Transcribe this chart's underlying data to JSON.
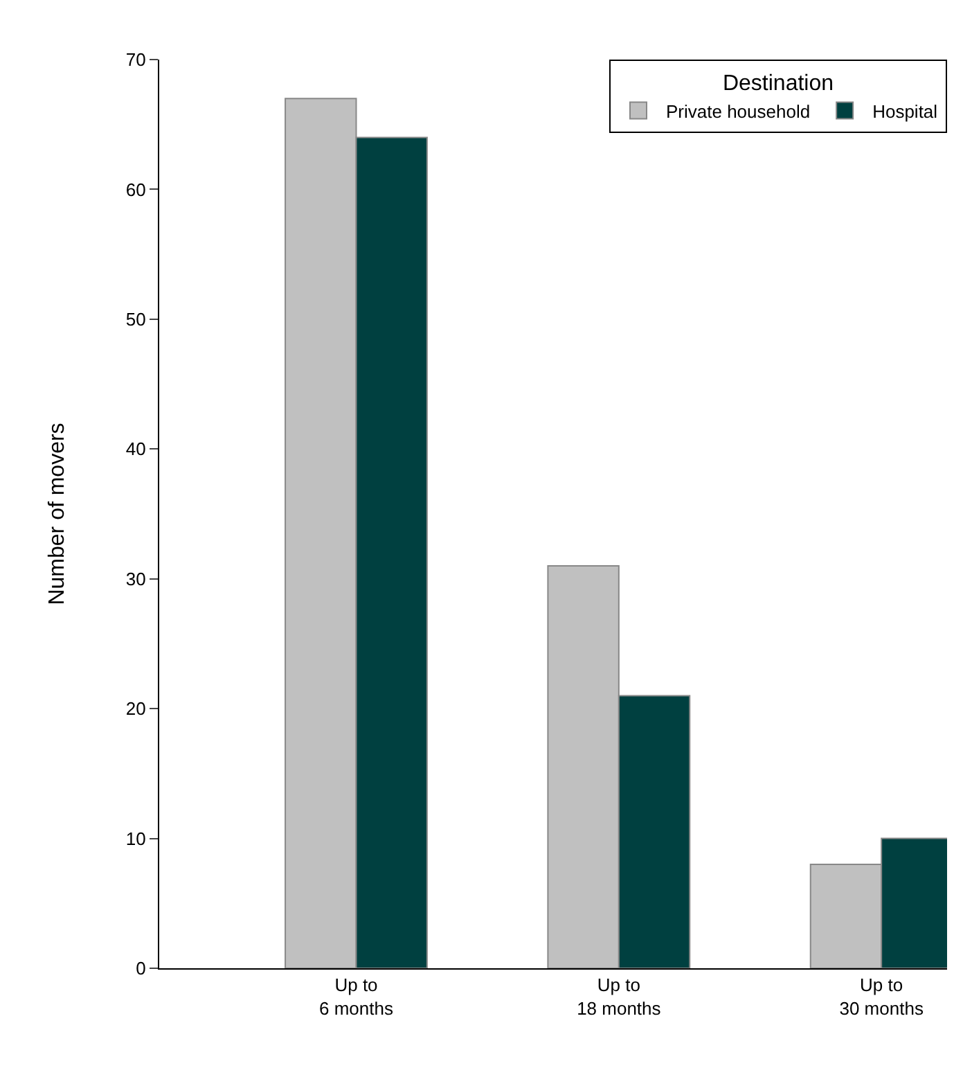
{
  "chart_data": {
    "type": "bar",
    "ylabel": "Number of movers",
    "legend_title": "Destination",
    "legend": "top right",
    "categories": [
      "Up to\n6 months",
      "Up to\n18 months",
      "Up to\n30 months"
    ],
    "series": [
      {
        "name": "Private household",
        "color": "#c0c0c0",
        "values": [
          67,
          31,
          8
        ]
      },
      {
        "name": "Hospital",
        "color": "#004040",
        "values": [
          64,
          21,
          10
        ]
      }
    ],
    "ylim": [
      0,
      70
    ],
    "yticks": [
      0,
      10,
      20,
      30,
      40,
      50,
      60,
      70
    ]
  }
}
